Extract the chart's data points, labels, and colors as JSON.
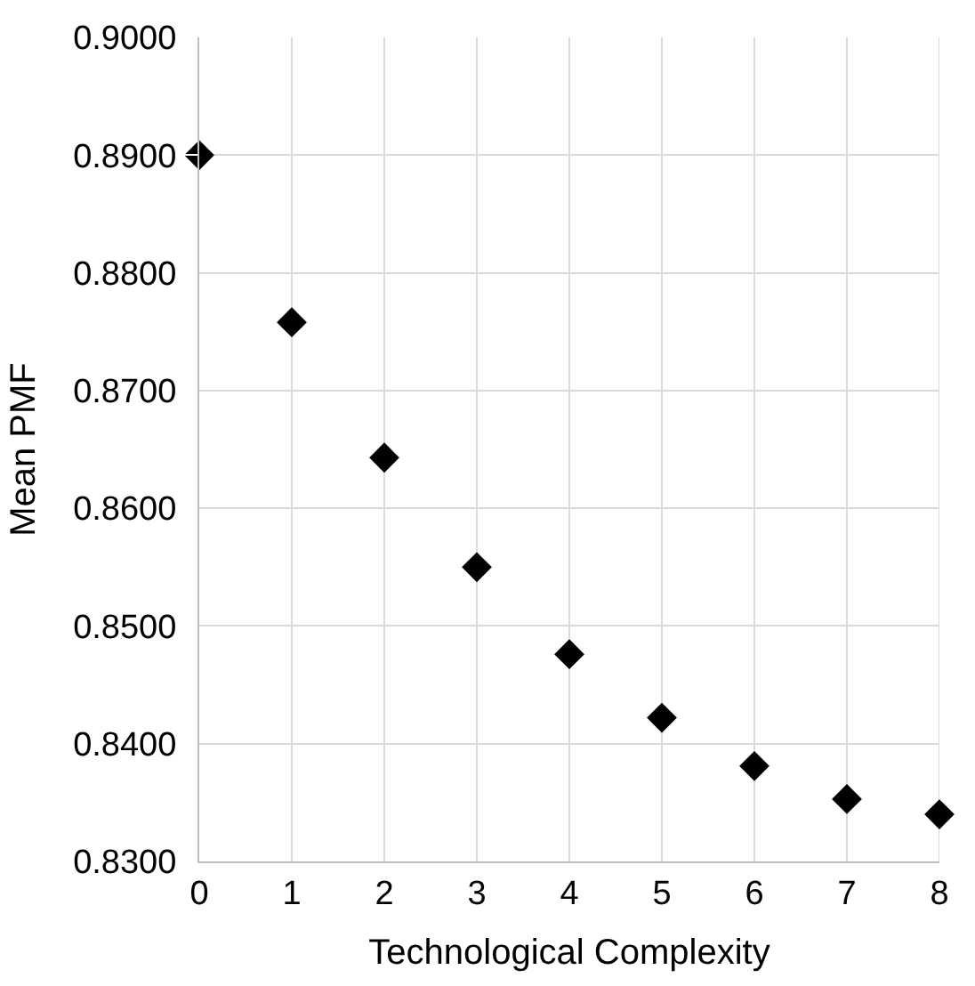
{
  "chart_data": {
    "type": "scatter",
    "xlabel": "Technological Complexity",
    "ylabel": "Mean PMF",
    "x": [
      0,
      1,
      2,
      3,
      4,
      5,
      6,
      7,
      8
    ],
    "series": [
      {
        "color": "#000000",
        "values": [
          0.89,
          0.8758,
          0.8643,
          0.855,
          0.8476,
          0.8422,
          0.8381,
          0.8353,
          0.834
        ]
      }
    ],
    "xlim": [
      0,
      8
    ],
    "xticks": [
      0,
      1,
      2,
      3,
      4,
      5,
      6,
      7,
      8
    ],
    "ylim": [
      0.83,
      0.9
    ],
    "yticks": [
      {
        "value": 0.83,
        "label": "0.8300"
      },
      {
        "value": 0.84,
        "label": "0.8400"
      },
      {
        "value": 0.85,
        "label": "0.8500"
      },
      {
        "value": 0.86,
        "label": "0.8600"
      },
      {
        "value": 0.87,
        "label": "0.8700"
      },
      {
        "value": 0.88,
        "label": "0.8800"
      },
      {
        "value": 0.89,
        "label": "0.8900"
      },
      {
        "value": 0.9,
        "label": "0.9000"
      }
    ],
    "grid": true,
    "marker": "diamond"
  }
}
